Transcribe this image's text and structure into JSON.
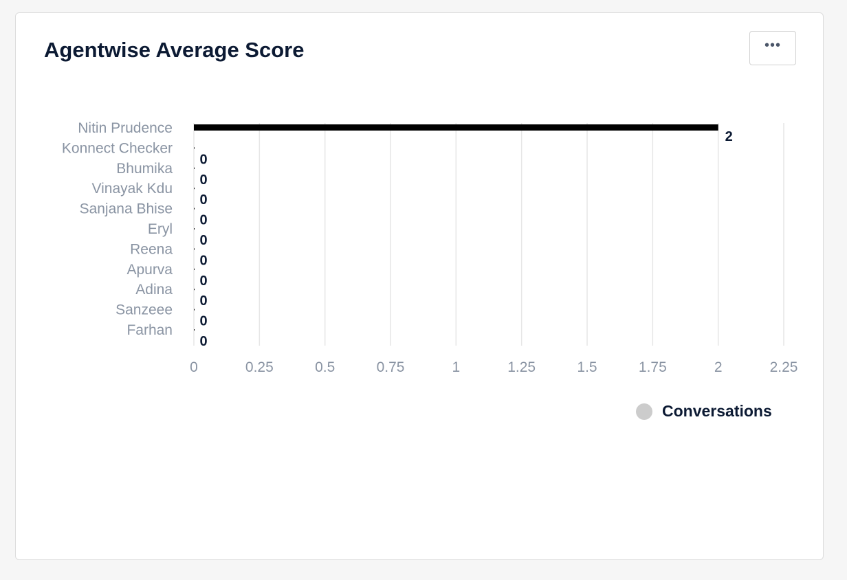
{
  "card": {
    "title": "Agentwise Average Score",
    "more_label": "•••"
  },
  "colors": {
    "bar": "#000000",
    "title": "#0c1a33",
    "axis_text": "#8a94a3",
    "grid": "#e6e6e6",
    "value_label": "#0c1a33",
    "legend_swatch": "#cccccc"
  },
  "chart_data": {
    "type": "bar",
    "orientation": "horizontal",
    "categories": [
      "Nitin Prudence",
      "Konnect Checker",
      "Bhumika",
      "Vinayak Kdu",
      "Sanjana Bhise",
      "Eryl",
      "Reena",
      "Apurva",
      "Adina",
      "Sanzeee",
      "Farhan"
    ],
    "series": [
      {
        "name": "Conversations",
        "values": [
          2,
          0,
          0,
          0,
          0,
          0,
          0,
          0,
          0,
          0,
          0
        ]
      }
    ],
    "data_labels": [
      "2",
      "0",
      "0",
      "0",
      "0",
      "0",
      "0",
      "0",
      "0",
      "0",
      "0"
    ],
    "x_ticks": [
      "0",
      "0.25",
      "0.5",
      "0.75",
      "1",
      "1.25",
      "1.5",
      "1.75",
      "2",
      "2.25"
    ],
    "xlim": [
      0,
      2.25
    ],
    "grid": true,
    "legend_position": "bottom-right"
  }
}
